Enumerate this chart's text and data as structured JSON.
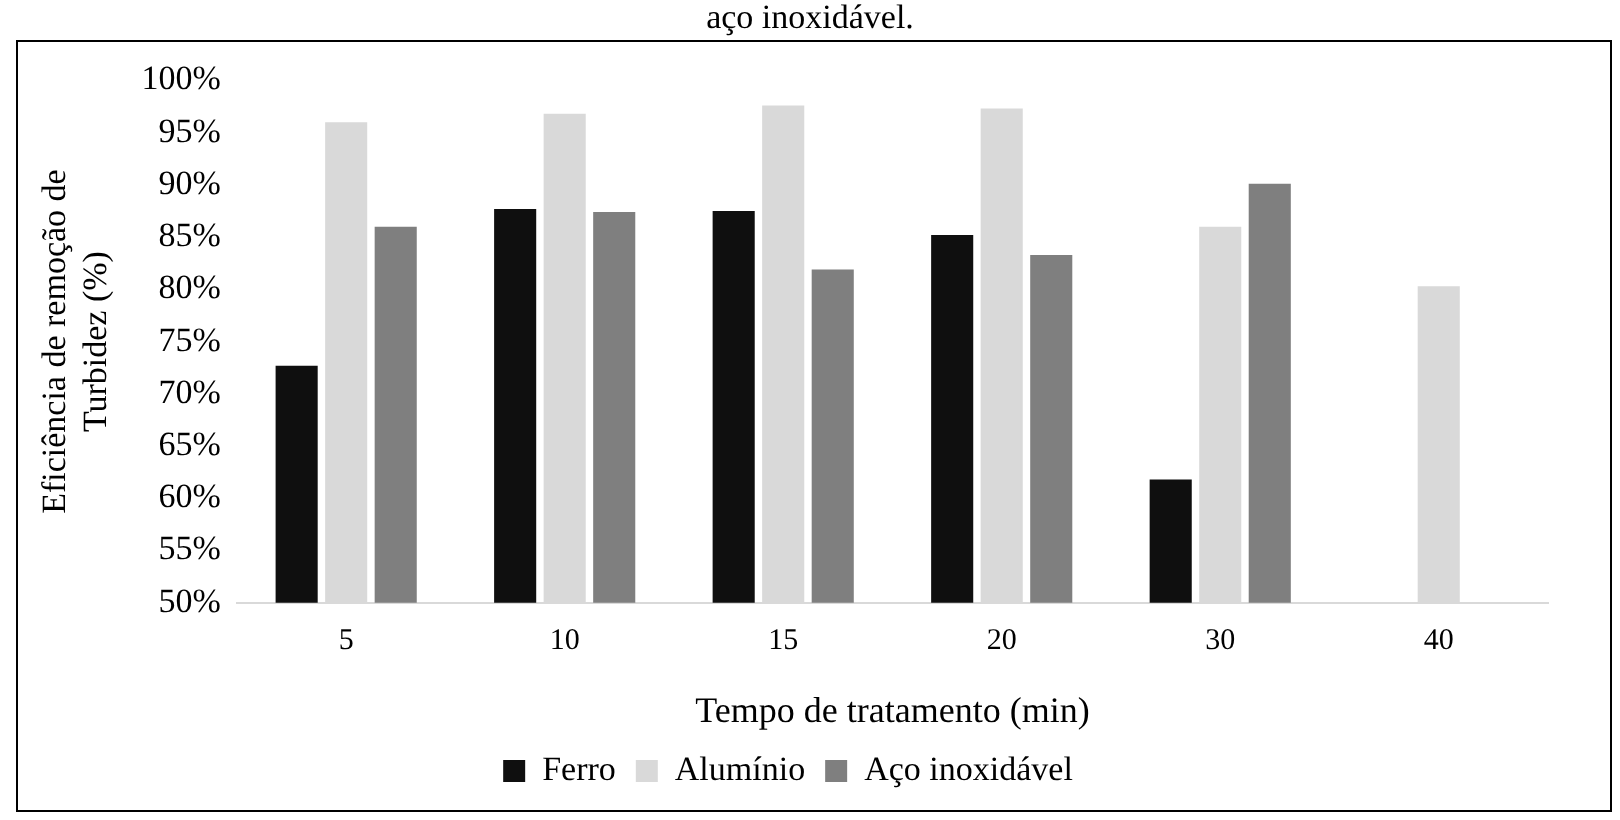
{
  "chart_data": {
    "type": "bar",
    "title": "aço inoxidável.",
    "xlabel": "Tempo de tratamento (min)",
    "ylabel": "Eficiência de remoção de Turbidez (%)",
    "categories": [
      "5",
      "10",
      "15",
      "20",
      "30",
      "40"
    ],
    "series": [
      {
        "name": "Ferro",
        "color": "#0f0f0f",
        "values": [
          72.7,
          87.7,
          87.5,
          85.2,
          61.8,
          null
        ]
      },
      {
        "name": "Alumínio",
        "color": "#d9d9d9",
        "values": [
          96.0,
          96.8,
          97.6,
          97.3,
          86.0,
          80.3
        ]
      },
      {
        "name": "Aço inoxidável",
        "color": "#7f7f7f",
        "values": [
          86.0,
          87.4,
          81.9,
          83.3,
          90.1,
          null
        ]
      }
    ],
    "ylim": [
      50,
      100
    ],
    "yticks": [
      {
        "value": 50,
        "label": "50%"
      },
      {
        "value": 55,
        "label": "55%"
      },
      {
        "value": 60,
        "label": "60%"
      },
      {
        "value": 65,
        "label": "65%"
      },
      {
        "value": 70,
        "label": "70%"
      },
      {
        "value": 75,
        "label": "75%"
      },
      {
        "value": 80,
        "label": "80%"
      },
      {
        "value": 85,
        "label": "85%"
      },
      {
        "value": 90,
        "label": "90%"
      },
      {
        "value": 95,
        "label": "95%"
      },
      {
        "value": 100,
        "label": "100%"
      }
    ],
    "grid": false,
    "legend": "bottom"
  }
}
